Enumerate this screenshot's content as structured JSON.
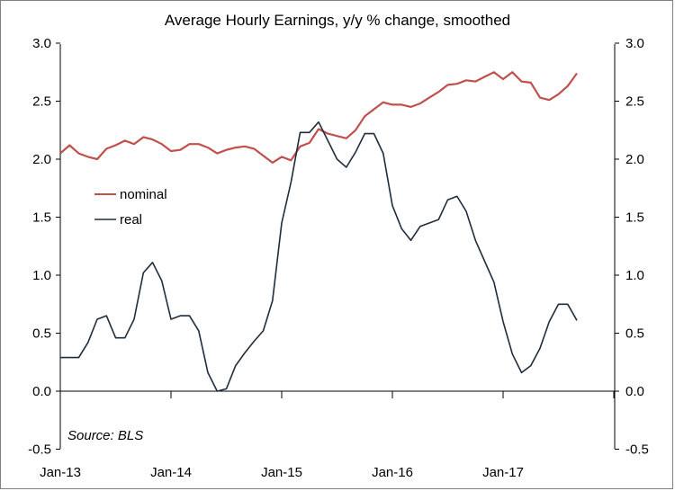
{
  "chart_data": {
    "type": "line",
    "title": "Average Hourly Earnings, y/y % change, smoothed",
    "source": "Source: BLS",
    "xlabel": "",
    "ylabel": "",
    "ylim": [
      -0.5,
      3.0
    ],
    "y_ticks": [
      "-0.5",
      "0.0",
      "0.5",
      "1.0",
      "1.5",
      "2.0",
      "2.5",
      "3.0"
    ],
    "y_tick_values": [
      -0.5,
      0.0,
      0.5,
      1.0,
      1.5,
      2.0,
      2.5,
      3.0
    ],
    "right_axis": true,
    "x_ticks": [
      "Jan-13",
      "Jan-14",
      "Jan-15",
      "Jan-16",
      "Jan-17"
    ],
    "x_start": "Jan-13",
    "x_months": 62,
    "legend_position": "left-middle",
    "grid": false,
    "series": [
      {
        "name": "nominal",
        "color": "#c0504d",
        "values": [
          2.05,
          2.12,
          2.05,
          2.02,
          2.0,
          2.09,
          2.12,
          2.16,
          2.13,
          2.19,
          2.17,
          2.13,
          2.07,
          2.08,
          2.13,
          2.13,
          2.1,
          2.05,
          2.08,
          2.1,
          2.11,
          2.09,
          2.03,
          1.97,
          2.02,
          1.99,
          2.11,
          2.14,
          2.26,
          2.22,
          2.2,
          2.18,
          2.25,
          2.37,
          2.43,
          2.49,
          2.47,
          2.47,
          2.45,
          2.48,
          2.53,
          2.58,
          2.64,
          2.65,
          2.68,
          2.67,
          2.71,
          2.75,
          2.69,
          2.75,
          2.67,
          2.66,
          2.53,
          2.51,
          2.56,
          2.63,
          2.74
        ]
      },
      {
        "name": "real",
        "color": "#1f2d3d",
        "values": [
          0.29,
          0.29,
          0.29,
          0.42,
          0.62,
          0.65,
          0.46,
          0.46,
          0.62,
          1.02,
          1.11,
          0.95,
          0.62,
          0.65,
          0.65,
          0.52,
          0.16,
          0.0,
          0.02,
          0.22,
          0.33,
          0.43,
          0.52,
          0.78,
          1.45,
          1.8,
          2.23,
          2.23,
          2.32,
          2.16,
          2.0,
          1.93,
          2.06,
          2.22,
          2.22,
          2.05,
          1.6,
          1.4,
          1.3,
          1.42,
          1.45,
          1.48,
          1.65,
          1.68,
          1.55,
          1.3,
          1.12,
          0.94,
          0.6,
          0.32,
          0.16,
          0.22,
          0.37,
          0.6,
          0.75,
          0.75,
          0.61
        ]
      }
    ]
  }
}
